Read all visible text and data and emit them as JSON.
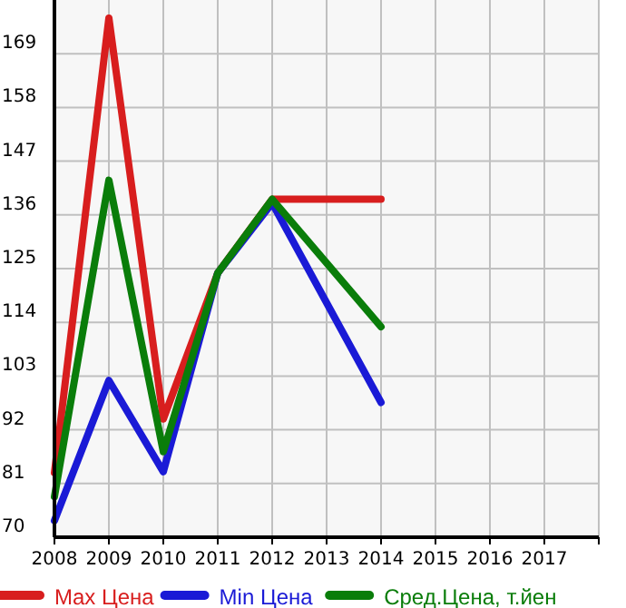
{
  "chart_data": {
    "type": "line",
    "x": [
      2008,
      2009,
      2010,
      2011,
      2012,
      2014
    ],
    "series": [
      {
        "name": "Max Цена",
        "color": "#d81e1e",
        "values": [
          83.2,
          176.3,
          94.2,
          124.1,
          139.2,
          139.2
        ]
      },
      {
        "name": "Min Цена",
        "color": "#1a1ad6",
        "values": [
          73.4,
          102.1,
          83.4,
          124.1,
          138.4,
          97.6
        ]
      },
      {
        "name": "Сред.Цена, т.йен",
        "color": "#0a7d0a",
        "values": [
          78.3,
          143.1,
          87.5,
          124.1,
          139.2,
          113.1
        ]
      }
    ],
    "xlim": [
      2008,
      2018
    ],
    "xticks": [
      2008,
      2009,
      2010,
      2011,
      2012,
      2013,
      2014,
      2015,
      2016,
      2017
    ],
    "ylim": [
      70,
      180
    ],
    "yticks": [
      70,
      81,
      92,
      103,
      114,
      125,
      136,
      147,
      158,
      169
    ],
    "grid": true,
    "legend": "bottom",
    "marker": "none",
    "line_style": "solid"
  }
}
